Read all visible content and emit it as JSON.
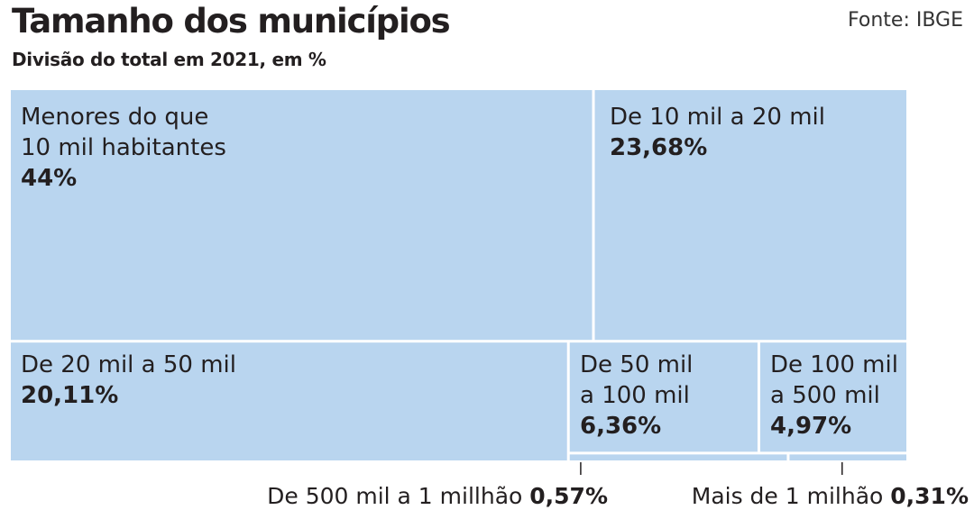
{
  "header": {
    "title": "Tamanho dos municípios",
    "subtitle": "Divisão do total em 2021, em %",
    "source": "Fonte: IBGE"
  },
  "colors": {
    "fill": "#b9d5ef",
    "divider": "#ffffff",
    "text": "#231f20",
    "leader": "#231f20"
  },
  "chart_data": {
    "type": "treemap",
    "title": "Tamanho dos municípios",
    "subtitle": "Divisão do total em 2021, em %",
    "unit": "%",
    "items": [
      {
        "name": "Menores do que\n10 mil habitantes",
        "value": 44,
        "value_label": "44%"
      },
      {
        "name": "De 10 mil a 20 mil",
        "value": 23.68,
        "value_label": "23,68%"
      },
      {
        "name": "De 20 mil a 50 mil",
        "value": 20.11,
        "value_label": "20,11%"
      },
      {
        "name": "De 50 mil\na 100 mil",
        "value": 6.36,
        "value_label": "6,36%"
      },
      {
        "name": "De 100 mil\na 500 mil",
        "value": 4.97,
        "value_label": "4,97%"
      },
      {
        "name": "De 500 mil a 1 millhão",
        "value": 0.57,
        "value_label": "0,57%"
      },
      {
        "name": "Mais de 1 milhão",
        "value": 0.31,
        "value_label": "0,31%"
      }
    ]
  }
}
